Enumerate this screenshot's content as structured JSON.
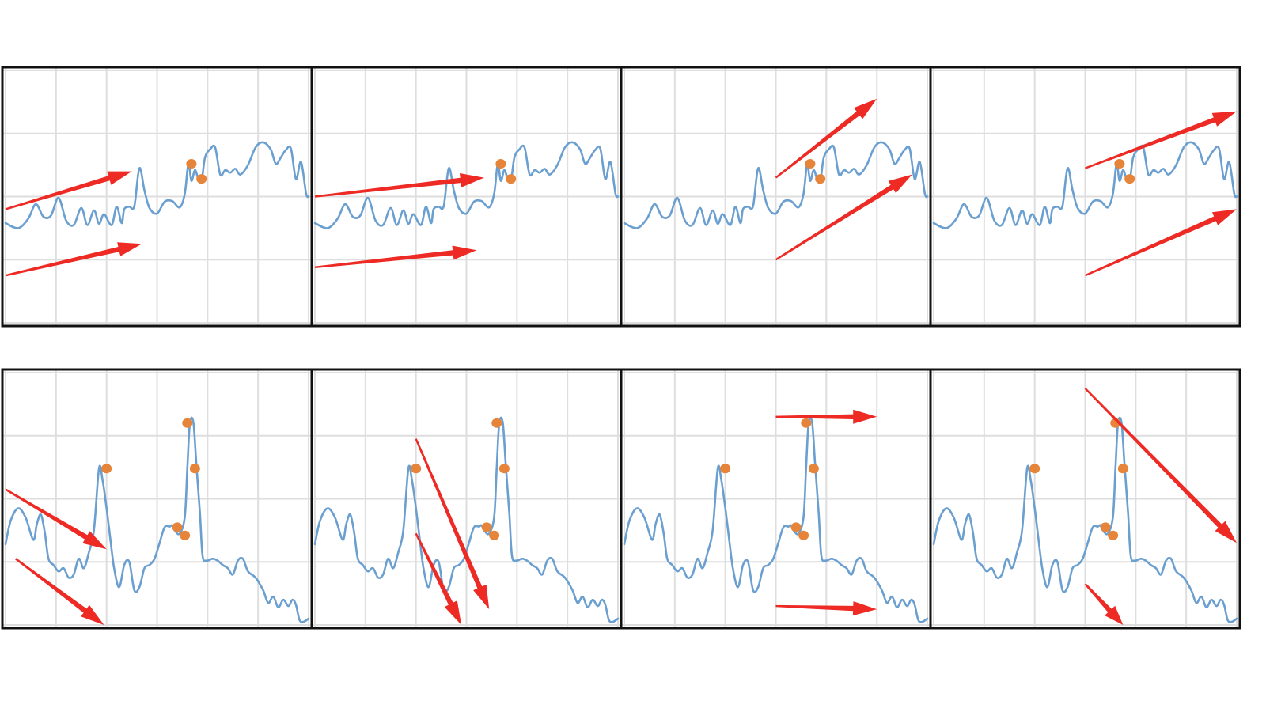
{
  "colors": {
    "background": "#ffffff",
    "grid": "#dedede",
    "frame": "#111111",
    "series": "#6a9fcf",
    "points": "#e6843a",
    "arrows": "#ee2a24"
  },
  "chart_data": [
    {
      "row": "top",
      "type": "line",
      "panel_count": 4,
      "xlim": [
        0,
        6
      ],
      "ylim": [
        0,
        4
      ],
      "grid": true,
      "series": [
        {
          "x": [
            0,
            0.25,
            0.45,
            0.6,
            0.75,
            0.9,
            1.05,
            1.2,
            1.35,
            1.5,
            1.62,
            1.75,
            1.85,
            1.95,
            2.1,
            2.2,
            2.3,
            2.35,
            2.45,
            2.55,
            2.65,
            2.75,
            2.85,
            3.0,
            3.15,
            3.3,
            3.45,
            3.55,
            3.62,
            3.68,
            3.75,
            3.82,
            3.88,
            3.95,
            4.05,
            4.15,
            4.25,
            4.35,
            4.45,
            4.55,
            4.65,
            4.8,
            4.95,
            5.1,
            5.25,
            5.35,
            5.45,
            5.55,
            5.65,
            5.75,
            5.85,
            5.95,
            6.0
          ],
          "y": [
            1.58,
            1.5,
            1.65,
            1.88,
            1.68,
            1.7,
            1.98,
            1.62,
            1.55,
            1.82,
            1.55,
            1.78,
            1.57,
            1.72,
            1.55,
            1.84,
            1.58,
            1.8,
            1.84,
            1.85,
            2.45,
            2.1,
            1.82,
            1.73,
            1.92,
            1.93,
            1.83,
            2.05,
            2.52,
            2.25,
            2.42,
            2.27,
            2.24,
            2.62,
            2.75,
            2.78,
            2.35,
            2.42,
            2.38,
            2.44,
            2.35,
            2.5,
            2.78,
            2.86,
            2.75,
            2.52,
            2.62,
            2.74,
            2.76,
            2.28,
            2.55,
            2.05,
            2.0
          ]
        }
      ],
      "highlighted_points": [
        {
          "x": 3.68,
          "y": 2.52
        },
        {
          "x": 3.88,
          "y": 2.28
        }
      ]
    },
    {
      "row": "bottom",
      "type": "line",
      "panel_count": 4,
      "xlim": [
        0,
        6
      ],
      "ylim": [
        0,
        4
      ],
      "grid": true,
      "series": [
        {
          "x": [
            0,
            0.1,
            0.25,
            0.4,
            0.55,
            0.62,
            0.7,
            0.78,
            0.85,
            0.95,
            1.05,
            1.15,
            1.25,
            1.35,
            1.45,
            1.55,
            1.65,
            1.75,
            1.85,
            1.92,
            2.0,
            2.07,
            2.15,
            2.25,
            2.35,
            2.45,
            2.55,
            2.65,
            2.75,
            2.85,
            2.95,
            3.05,
            3.15,
            3.25,
            3.3,
            3.35,
            3.45,
            3.55,
            3.6,
            3.65,
            3.72,
            3.78,
            3.85,
            3.9,
            3.98,
            4.1,
            4.2,
            4.3,
            4.4,
            4.5,
            4.6,
            4.7,
            4.8,
            4.95,
            5.1,
            5.2,
            5.3,
            5.4,
            5.5,
            5.6,
            5.68,
            5.75,
            5.82,
            5.9,
            6.0
          ],
          "y": [
            1.28,
            1.65,
            1.85,
            1.7,
            1.35,
            1.6,
            1.75,
            1.45,
            1.05,
            0.95,
            0.85,
            0.9,
            0.75,
            0.8,
            1.05,
            0.9,
            1.15,
            1.5,
            2.48,
            2.3,
            1.85,
            1.4,
            0.9,
            0.6,
            0.95,
            1.0,
            0.55,
            0.6,
            0.9,
            0.95,
            1.05,
            1.3,
            1.55,
            1.56,
            1.58,
            1.5,
            1.45,
            1.72,
            2.5,
            3.2,
            3.2,
            2.52,
            1.75,
            1.1,
            1.02,
            1.05,
            1.02,
            0.95,
            0.9,
            0.8,
            1.02,
            1.05,
            0.85,
            0.75,
            0.55,
            0.35,
            0.45,
            0.28,
            0.4,
            0.3,
            0.4,
            0.32,
            0.08,
            0.05,
            0.1
          ]
        }
      ],
      "highlighted_points": [
        {
          "x": 2.0,
          "y": 2.48
        },
        {
          "x": 3.6,
          "y": 3.2
        },
        {
          "x": 3.75,
          "y": 2.48
        },
        {
          "x": 3.4,
          "y": 1.55
        },
        {
          "x": 3.55,
          "y": 1.42
        }
      ]
    }
  ],
  "arrows": [
    {
      "panel": 1,
      "x1": 0.0,
      "y1": 1.8,
      "x2": 2.5,
      "y2": 2.4
    },
    {
      "panel": 1,
      "x1": 0.0,
      "y1": 0.75,
      "x2": 2.7,
      "y2": 1.25
    },
    {
      "panel": 2,
      "x1": 0.0,
      "y1": 2.0,
      "x2": 3.35,
      "y2": 2.3
    },
    {
      "panel": 2,
      "x1": 0.0,
      "y1": 0.88,
      "x2": 3.2,
      "y2": 1.15
    },
    {
      "panel": 3,
      "x1": 3.0,
      "y1": 2.3,
      "x2": 5.0,
      "y2": 3.55
    },
    {
      "panel": 3,
      "x1": 3.0,
      "y1": 1.0,
      "x2": 5.7,
      "y2": 2.35
    },
    {
      "panel": 4,
      "x1": 3.0,
      "y1": 2.45,
      "x2": 6.0,
      "y2": 3.35
    },
    {
      "panel": 4,
      "x1": 3.0,
      "y1": 0.75,
      "x2": 6.0,
      "y2": 1.8
    },
    {
      "panel": 5,
      "x1": 0.0,
      "y1": 2.15,
      "x2": 2.0,
      "y2": 1.2
    },
    {
      "panel": 5,
      "x1": 0.2,
      "y1": 1.05,
      "x2": 1.95,
      "y2": 0.0
    },
    {
      "panel": 6,
      "x1": 2.0,
      "y1": 2.95,
      "x2": 3.45,
      "y2": 0.25
    },
    {
      "panel": 6,
      "x1": 2.0,
      "y1": 1.45,
      "x2": 2.9,
      "y2": 0.0
    },
    {
      "panel": 7,
      "x1": 3.0,
      "y1": 3.3,
      "x2": 5.0,
      "y2": 3.3
    },
    {
      "panel": 7,
      "x1": 3.0,
      "y1": 0.3,
      "x2": 5.0,
      "y2": 0.25
    },
    {
      "panel": 8,
      "x1": 3.0,
      "y1": 3.75,
      "x2": 6.0,
      "y2": 1.3
    },
    {
      "panel": 8,
      "x1": 3.0,
      "y1": 0.65,
      "x2": 3.75,
      "y2": 0.0
    }
  ]
}
